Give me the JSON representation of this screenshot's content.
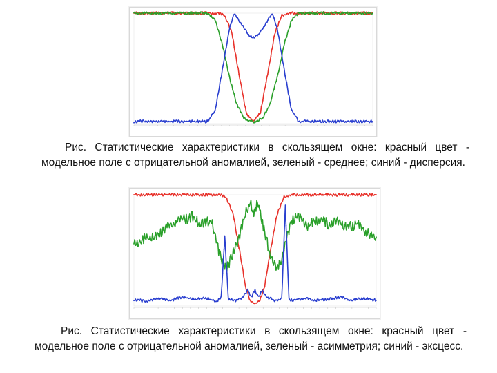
{
  "figures": [
    {
      "caption": "Рис. Статистические характеристики в скользящем окне: красный цвет - модельное поле с отрицательной аномалией, зеленый - среднее; синий - дисперсия.",
      "chart_data": {
        "type": "line",
        "title": "",
        "xlabel": "",
        "ylabel": "",
        "series": [
          {
            "color": "#e8312a",
            "x": [
              0,
              35,
              38,
              41,
              44,
              47,
              50,
              53,
              56,
              59,
              62,
              65,
              100
            ],
            "y": [
              1.0,
              1.0,
              0.98,
              0.82,
              0.45,
              0.1,
              0.02,
              0.1,
              0.45,
              0.82,
              0.98,
              1.0,
              1.0
            ]
          },
          {
            "color": "#2aa02a",
            "x": [
              0,
              31,
              34,
              37,
              40,
              43,
              46,
              50,
              54,
              57,
              60,
              63,
              66,
              69,
              100
            ],
            "y": [
              1.0,
              1.0,
              0.94,
              0.72,
              0.42,
              0.18,
              0.05,
              0.01,
              0.05,
              0.18,
              0.42,
              0.72,
              0.94,
              1.0,
              1.0
            ]
          },
          {
            "color": "#2a3fcf",
            "x": [
              0,
              31,
              34,
              37,
              40,
              42,
              45,
              48,
              50,
              52,
              55,
              58,
              60,
              63,
              66,
              69,
              100
            ],
            "y": [
              0.02,
              0.02,
              0.12,
              0.48,
              0.86,
              1.0,
              0.9,
              0.8,
              0.78,
              0.8,
              0.9,
              1.0,
              0.86,
              0.48,
              0.12,
              0.02,
              0.02
            ]
          }
        ]
      }
    },
    {
      "caption": "Рис. Статистические характеристики в скользящем окне: красный цвет - модельное поле с отрицательной аномалией, зеленый - асимметрия; синий - эксцесс.",
      "chart_data": {
        "type": "line",
        "title": "",
        "xlabel": "",
        "ylabel": "",
        "series": [
          {
            "color": "#e8312a",
            "x": [
              0,
              35,
              38,
              41,
              44,
              46,
              48,
              50,
              52,
              54,
              56,
              59,
              62,
              65,
              100
            ],
            "y": [
              1.0,
              1.0,
              0.98,
              0.82,
              0.45,
              0.18,
              0.05,
              0.02,
              0.05,
              0.18,
              0.45,
              0.82,
              0.98,
              1.0,
              1.0
            ]
          },
          {
            "color": "#2aa02a",
            "x": [
              0,
              4,
              8,
              12,
              16,
              20,
              24,
              28,
              32,
              35,
              38,
              41,
              44,
              46,
              48,
              49.5,
              51,
              52.5,
              54,
              56,
              59,
              62,
              65,
              68,
              72,
              76,
              80,
              84,
              88,
              92,
              96,
              100
            ],
            "y": [
              0.55,
              0.6,
              0.62,
              0.68,
              0.74,
              0.78,
              0.8,
              0.73,
              0.77,
              0.5,
              0.32,
              0.48,
              0.66,
              0.82,
              0.95,
              0.82,
              0.95,
              0.82,
              0.66,
              0.48,
              0.32,
              0.5,
              0.78,
              0.8,
              0.72,
              0.78,
              0.74,
              0.76,
              0.7,
              0.74,
              0.66,
              0.62
            ]
          },
          {
            "color": "#2a3fcf",
            "x": [
              0,
              5,
              10,
              15,
              20,
              25,
              30,
              34,
              36,
              37.5,
              39,
              42,
              45,
              47,
              48.5,
              50,
              51.5,
              53,
              55,
              58,
              61,
              62.5,
              64,
              66,
              70,
              75,
              80,
              85,
              90,
              95,
              100
            ],
            "y": [
              0.06,
              0.04,
              0.07,
              0.05,
              0.08,
              0.06,
              0.07,
              0.04,
              0.08,
              0.62,
              0.06,
              0.05,
              0.08,
              0.14,
              0.08,
              0.14,
              0.08,
              0.14,
              0.08,
              0.05,
              0.06,
              0.9,
              0.06,
              0.05,
              0.07,
              0.05,
              0.06,
              0.08,
              0.05,
              0.07,
              0.05
            ]
          }
        ]
      }
    }
  ]
}
